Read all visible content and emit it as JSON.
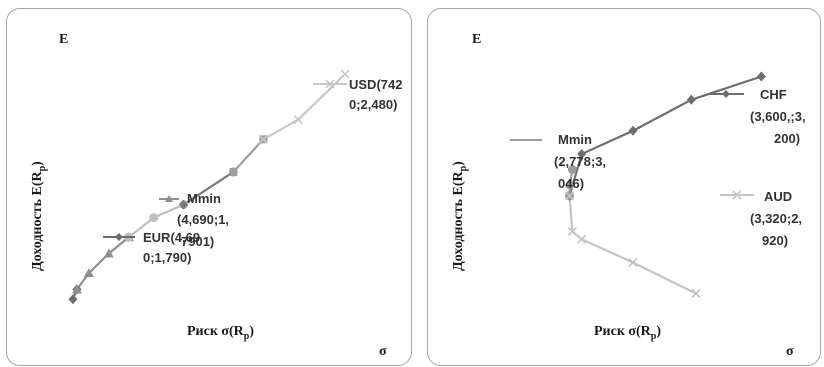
{
  "chart_data": [
    {
      "type": "line",
      "ylabel_corner": "E",
      "ylabel": "Доходность E(R",
      "ylabel_sub": "p",
      "ylabel_end": ")",
      "xlabel": "Риск σ(R",
      "xlabel_sub": "p",
      "xlabel_end": ")",
      "xlabel_corner": "σ",
      "grid": false,
      "xlim": [
        4.55,
        7.7
      ],
      "ylim": [
        1.76,
        2.52
      ],
      "series": [
        {
          "name": "EUR(4,690;1,790)",
          "color": "#6d6d6d",
          "marker": "diamond",
          "x": [
            4.69,
            4.73
          ],
          "y": [
            1.79,
            1.82
          ]
        },
        {
          "name": "Mmin (4,690;1,7901)",
          "color": "#8f8f8f",
          "marker": "triangle",
          "x": [
            4.73,
            4.85,
            5.05,
            5.25
          ],
          "y": [
            1.82,
            1.87,
            1.93,
            1.98
          ]
        },
        {
          "name": "",
          "color": "#bfbfbf",
          "marker": "circle",
          "x": [
            5.25,
            5.5,
            5.8
          ],
          "y": [
            1.98,
            2.04,
            2.08
          ]
        },
        {
          "name": "",
          "color": "#7a7a7a",
          "marker": "diamond",
          "x": [
            5.8,
            6.3
          ],
          "y": [
            2.08,
            2.18
          ]
        },
        {
          "name": "",
          "color": "#9e9e9e",
          "marker": "square",
          "x": [
            6.3,
            6.6
          ],
          "y": [
            2.18,
            2.28
          ]
        },
        {
          "name": "USD(7420;2,480)",
          "color": "#c8c8c8",
          "marker": "cross",
          "x": [
            6.6,
            6.95,
            7.42
          ],
          "y": [
            2.28,
            2.34,
            2.48
          ]
        }
      ],
      "labels": {
        "usd": [
          "USD(742",
          "0;2,480)"
        ],
        "mmin": [
          "Mmin",
          "(4,690;1,",
          "7901)"
        ],
        "eur": [
          "EUR(4,69",
          "0;1,790)"
        ]
      }
    },
    {
      "type": "line",
      "ylabel_corner": "E",
      "ylabel": "Доходность E(R",
      "ylabel_sub": "p",
      "ylabel_end": ")",
      "xlabel": "Риск σ(R",
      "xlabel_sub": "p",
      "xlabel_end": ")",
      "xlabel_corner": "σ",
      "grid": false,
      "xlim": [
        2.6,
        3.65
      ],
      "ylim": [
        2.9,
        3.22
      ],
      "series": [
        {
          "name": "CHF (3,600,;3,200)",
          "color": "#6e6e6e",
          "marker": "diamond",
          "x": [
            2.778,
            2.83,
            3.05,
            3.3,
            3.6
          ],
          "y": [
            3.046,
            3.1,
            3.13,
            3.17,
            3.2
          ]
        },
        {
          "name": "Mmin (2,778;3,046)",
          "color": "#9c9c9c",
          "marker": "circle",
          "x": [
            2.778,
            2.78,
            2.79
          ],
          "y": [
            3.046,
            3.06,
            3.08
          ]
        },
        {
          "name": "AUD (3,320;2,920)",
          "color": "#c4c4c4",
          "marker": "cross",
          "x": [
            2.778,
            2.79,
            2.83,
            3.05,
            3.32
          ],
          "y": [
            3.046,
            3.0,
            2.99,
            2.96,
            2.92
          ]
        }
      ],
      "labels": {
        "chf": [
          "CHF",
          "(3,600,;3,",
          "200)"
        ],
        "mmin": [
          "Mmin",
          "(2,778;3,",
          "046)"
        ],
        "aud": [
          "AUD",
          "(3,320;2,",
          "920)"
        ]
      }
    }
  ]
}
